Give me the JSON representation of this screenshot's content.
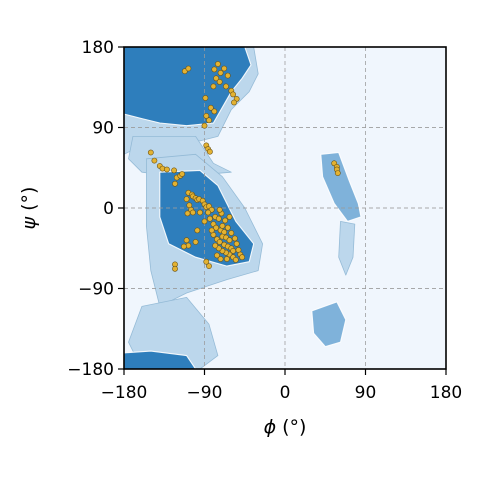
{
  "chart_data": {
    "type": "scatter",
    "subtype": "ramachandran-plot",
    "title": "",
    "xlabel_symbol": "ϕ",
    "xlabel_unit": "(°)",
    "ylabel_symbol": "ψ",
    "ylabel_unit": "(°)",
    "xlim": [
      -180,
      180
    ],
    "ylim": [
      -180,
      180
    ],
    "xticks": [
      -180,
      -90,
      0,
      90,
      180
    ],
    "yticks": [
      -180,
      -90,
      0,
      90,
      180
    ],
    "x_tick_labels": [
      "−180",
      "−90",
      "0",
      "90",
      "180"
    ],
    "y_tick_labels": [
      "−180",
      "−90",
      "0",
      "90",
      "180"
    ],
    "grid": true,
    "colors": {
      "background": "#f0f6fd",
      "density_light": "#bcd7ec",
      "density_mid": "#7fb2da",
      "density_dark": "#2e7ebc",
      "point_fill": "#e3b232",
      "point_edge": "#6b5317",
      "contour": "#ffffff"
    },
    "background_density_regions": [
      {
        "name": "beta-sheet",
        "level": "dark",
        "polygon": [
          [
            -180,
            180
          ],
          [
            -45,
            180
          ],
          [
            -38,
            160
          ],
          [
            -48,
            145
          ],
          [
            -60,
            130
          ],
          [
            -80,
            95
          ],
          [
            -110,
            92
          ],
          [
            -140,
            95
          ],
          [
            -160,
            100
          ],
          [
            -180,
            105
          ]
        ]
      },
      {
        "name": "beta-sheet-halo",
        "level": "light",
        "polygon": [
          [
            -180,
            180
          ],
          [
            -35,
            180
          ],
          [
            -30,
            150
          ],
          [
            -40,
            130
          ],
          [
            -60,
            110
          ],
          [
            -75,
            80
          ],
          [
            -95,
            75
          ],
          [
            -135,
            75
          ],
          [
            -160,
            70
          ],
          [
            -180,
            60
          ]
        ]
      },
      {
        "name": "bridge",
        "level": "light",
        "polygon": [
          [
            -170,
            80
          ],
          [
            -100,
            80
          ],
          [
            -80,
            50
          ],
          [
            -60,
            40
          ],
          [
            -120,
            35
          ],
          [
            -160,
            40
          ],
          [
            -175,
            55
          ]
        ]
      },
      {
        "name": "alpha-helix",
        "level": "dark",
        "polygon": [
          [
            -140,
            40
          ],
          [
            -95,
            42
          ],
          [
            -75,
            25
          ],
          [
            -55,
            -15
          ],
          [
            -35,
            -40
          ],
          [
            -40,
            -60
          ],
          [
            -65,
            -65
          ],
          [
            -100,
            -55
          ],
          [
            -130,
            -40
          ],
          [
            -140,
            -10
          ]
        ]
      },
      {
        "name": "alpha-helix-halo",
        "level": "light",
        "polygon": [
          [
            -155,
            55
          ],
          [
            -100,
            60
          ],
          [
            -70,
            35
          ],
          [
            -45,
            0
          ],
          [
            -25,
            -40
          ],
          [
            -30,
            -70
          ],
          [
            -65,
            -80
          ],
          [
            -110,
            -95
          ],
          [
            -140,
            -110
          ],
          [
            -150,
            -70
          ],
          [
            -155,
            -20
          ]
        ]
      },
      {
        "name": "lower-left-tail",
        "level": "light",
        "polygon": [
          [
            -160,
            -110
          ],
          [
            -110,
            -100
          ],
          [
            -85,
            -130
          ],
          [
            -75,
            -165
          ],
          [
            -95,
            -180
          ],
          [
            -160,
            -180
          ],
          [
            -175,
            -150
          ]
        ]
      },
      {
        "name": "left-alpha",
        "level": "mid",
        "polygon": [
          [
            40,
            60
          ],
          [
            60,
            62
          ],
          [
            72,
            30
          ],
          [
            82,
            5
          ],
          [
            85,
            -10
          ],
          [
            70,
            -15
          ],
          [
            55,
            5
          ],
          [
            42,
            35
          ]
        ]
      },
      {
        "name": "left-alpha-tail",
        "level": "light",
        "polygon": [
          [
            62,
            -15
          ],
          [
            78,
            -18
          ],
          [
            76,
            -55
          ],
          [
            68,
            -75
          ],
          [
            60,
            -55
          ]
        ]
      },
      {
        "name": "lower-island",
        "level": "mid",
        "polygon": [
          [
            30,
            -115
          ],
          [
            58,
            -105
          ],
          [
            68,
            -125
          ],
          [
            62,
            -150
          ],
          [
            45,
            -155
          ],
          [
            32,
            -140
          ]
        ]
      },
      {
        "name": "bottom-left-strip",
        "level": "dark",
        "polygon": [
          [
            -180,
            -180
          ],
          [
            -100,
            -180
          ],
          [
            -110,
            -165
          ],
          [
            -150,
            -160
          ],
          [
            -180,
            -162
          ]
        ]
      }
    ],
    "series": [
      {
        "points": [
          [
            -112,
            153
          ],
          [
            -108,
            156
          ],
          [
            -79,
            155
          ],
          [
            -75,
            161
          ],
          [
            -72,
            151
          ],
          [
            -68,
            156
          ],
          [
            -64,
            148
          ],
          [
            -77,
            145
          ],
          [
            -73,
            141
          ],
          [
            -80,
            136
          ],
          [
            -66,
            136
          ],
          [
            -60,
            131
          ],
          [
            -58,
            127
          ],
          [
            -54,
            122
          ],
          [
            -57,
            118
          ],
          [
            -89,
            123
          ],
          [
            -83,
            112
          ],
          [
            -88,
            103
          ],
          [
            -85,
            98
          ],
          [
            -90,
            92
          ],
          [
            -79,
            108
          ],
          [
            -88,
            70
          ],
          [
            -86,
            66
          ],
          [
            -84,
            63
          ],
          [
            -146,
            53
          ],
          [
            -150,
            62
          ],
          [
            -140,
            47
          ],
          [
            -137,
            44
          ],
          [
            -132,
            43
          ],
          [
            -124,
            42
          ],
          [
            -121,
            34
          ],
          [
            -117,
            36
          ],
          [
            -115,
            38
          ],
          [
            -123,
            27
          ],
          [
            -108,
            17
          ],
          [
            -104,
            15
          ],
          [
            -103,
            13
          ],
          [
            -100,
            11
          ],
          [
            -98,
            9
          ],
          [
            -96,
            10
          ],
          [
            -92,
            8
          ],
          [
            -110,
            10
          ],
          [
            -107,
            3
          ],
          [
            -105,
            -2
          ],
          [
            -103,
            -5
          ],
          [
            -109,
            -6
          ],
          [
            -90,
            4
          ],
          [
            -88,
            1
          ],
          [
            -85,
            2
          ],
          [
            -82,
            -2
          ],
          [
            -86,
            -5
          ],
          [
            -78,
            -10
          ],
          [
            -74,
            -12
          ],
          [
            -80,
            -18
          ],
          [
            -77,
            -22
          ],
          [
            -72,
            -25
          ],
          [
            -68,
            -27
          ],
          [
            -70,
            -32
          ],
          [
            -66,
            -33
          ],
          [
            -62,
            -36
          ],
          [
            -76,
            -35
          ],
          [
            -73,
            -38
          ],
          [
            -68,
            -41
          ],
          [
            -64,
            -43
          ],
          [
            -60,
            -45
          ],
          [
            -58,
            -48
          ],
          [
            -62,
            -52
          ],
          [
            -66,
            -50
          ],
          [
            -70,
            -48
          ],
          [
            -74,
            -45
          ],
          [
            -78,
            -42
          ],
          [
            -80,
            -30
          ],
          [
            -82,
            -25
          ],
          [
            -70,
            -20
          ],
          [
            -64,
            -22
          ],
          [
            -60,
            -28
          ],
          [
            -56,
            -34
          ],
          [
            -54,
            -40
          ],
          [
            -52,
            -47
          ],
          [
            -50,
            -52
          ],
          [
            -48,
            -55
          ],
          [
            -76,
            -53
          ],
          [
            -72,
            -57
          ],
          [
            -65,
            -57
          ],
          [
            -58,
            -55
          ],
          [
            -55,
            -58
          ],
          [
            -98,
            -25
          ],
          [
            -100,
            -38
          ],
          [
            -108,
            -42
          ],
          [
            -110,
            -36
          ],
          [
            -113,
            -43
          ],
          [
            -123,
            -63
          ],
          [
            -123,
            -68
          ],
          [
            -88,
            -60
          ],
          [
            -85,
            -65
          ],
          [
            -90,
            -15
          ],
          [
            -95,
            -5
          ],
          [
            -84,
            -12
          ],
          [
            -71,
            -6
          ],
          [
            -67,
            -14
          ],
          [
            -62,
            -10
          ],
          [
            -73,
            -2
          ],
          [
            55,
            50
          ],
          [
            58,
            46
          ],
          [
            58,
            43
          ],
          [
            59,
            39
          ]
        ]
      }
    ]
  }
}
